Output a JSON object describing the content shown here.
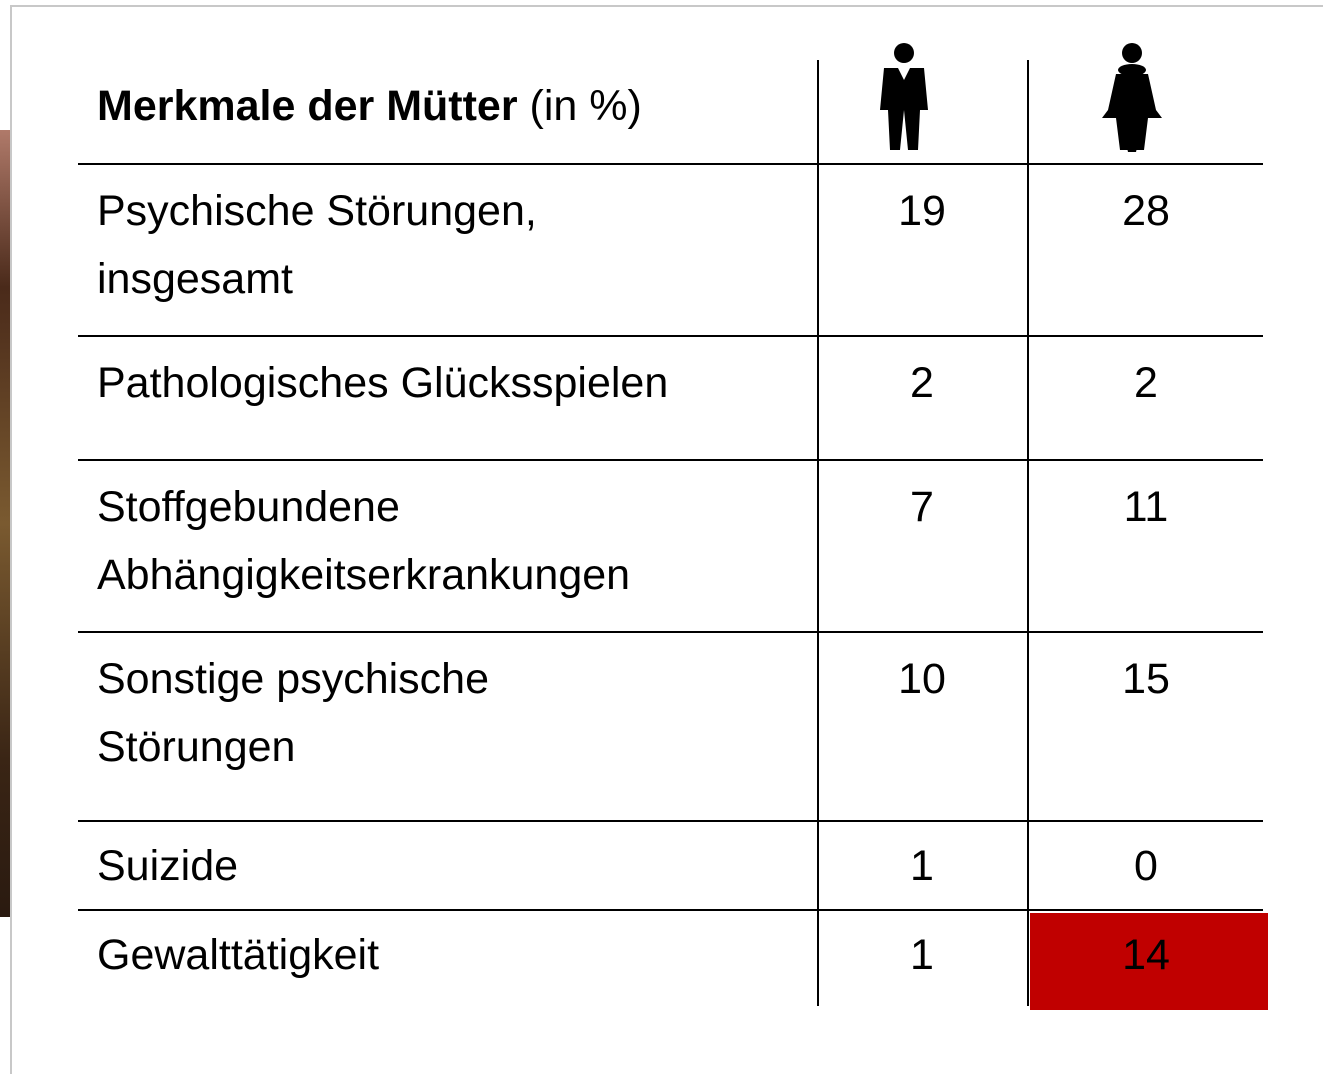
{
  "table": {
    "header": {
      "title_bold": "Merkmale der Mütter",
      "title_rest": "(in %)"
    },
    "rows": [
      {
        "label": [
          "Psychische Störungen,",
          "insgesamt"
        ],
        "male": "19",
        "female": "28"
      },
      {
        "label": [
          "Pathologisches Glücksspielen"
        ],
        "male": "2",
        "female": "2"
      },
      {
        "label": [
          "Stoffgebundene",
          "Abhängigkeitserkrankungen"
        ],
        "male": "7",
        "female": "11"
      },
      {
        "label": [
          "Sonstige psychische",
          "Störungen"
        ],
        "male": "10",
        "female": "15"
      },
      {
        "label": [
          "Suizide"
        ],
        "male": "1",
        "female": "0"
      },
      {
        "label": [
          "Gewalttätigkeit"
        ],
        "male": "1",
        "female": "14"
      }
    ]
  }
}
